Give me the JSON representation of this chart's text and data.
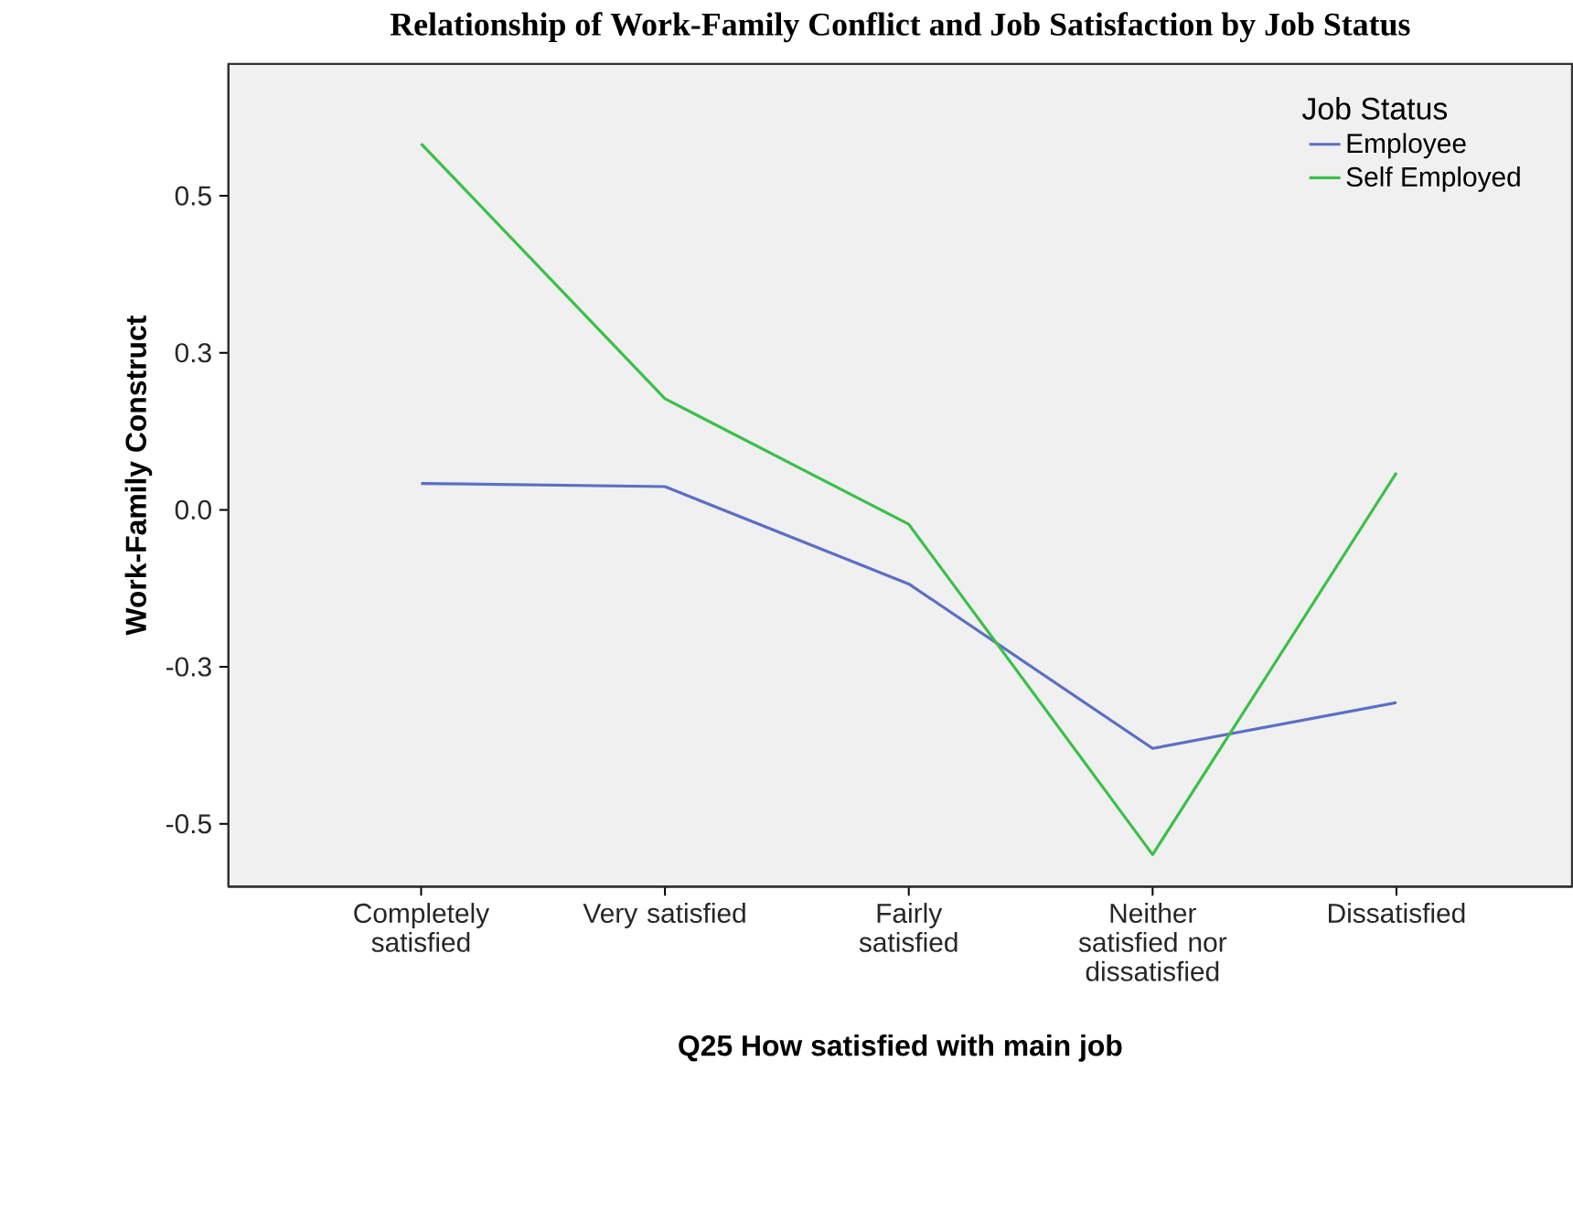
{
  "chart_data": {
    "type": "line",
    "title": "Relationship of Work-Family Conflict and Job Satisfaction by Job Status",
    "xlabel": "Q25 How satisfied with main job",
    "ylabel": "Work-Family Construct",
    "legend_title": "Job Status",
    "categories": [
      "Completely satisfied",
      "Very satisfied",
      "Fairly satisfied",
      "Neither satisfied nor dissatisfied",
      "Dissatisfied"
    ],
    "series": [
      {
        "name": "Employee",
        "color": "#5b6fc4",
        "values": [
          0.042,
          0.037,
          -0.118,
          -0.38,
          -0.307
        ]
      },
      {
        "name": "Self Employed",
        "color": "#3cbf4a",
        "values": [
          0.583,
          0.177,
          -0.023,
          -0.549,
          0.059
        ]
      }
    ],
    "ylim": [
      -0.6,
      0.71
    ],
    "yticks": [
      {
        "value": 0.5,
        "label": "0.5"
      },
      {
        "value": 0.25,
        "label": "0.3"
      },
      {
        "value": 0,
        "label": "0.0"
      },
      {
        "value": -0.25,
        "label": "-0.3"
      },
      {
        "value": -0.5,
        "label": "-0.5"
      }
    ],
    "grid": false,
    "legend": "top right",
    "marker": "none",
    "line_style": "solid"
  }
}
